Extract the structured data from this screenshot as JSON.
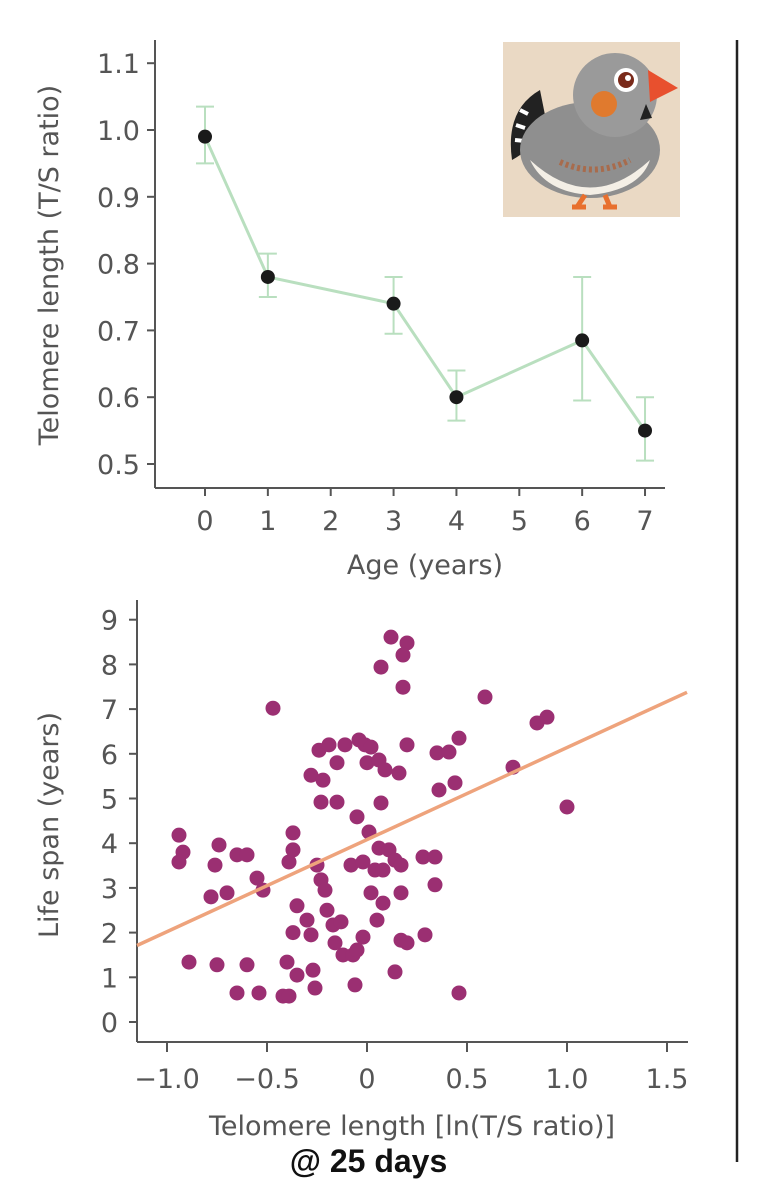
{
  "chart_data": [
    {
      "type": "line",
      "xlabel": "Age (years)",
      "ylabel": "Telomere length (T/S ratio)",
      "xticks": [
        0,
        1,
        2,
        3,
        4,
        5,
        6,
        7
      ],
      "yticks": [
        0.5,
        0.6,
        0.7,
        0.8,
        0.9,
        1.0,
        1.1
      ],
      "xlim": [
        -0.7,
        7.3
      ],
      "ylim": [
        0.47,
        1.15
      ],
      "x": [
        0,
        1,
        3,
        4,
        6,
        7
      ],
      "y": [
        0.99,
        0.78,
        0.74,
        0.6,
        0.685,
        0.55
      ],
      "err_low": [
        0.95,
        0.75,
        0.695,
        0.565,
        0.595,
        0.505
      ],
      "err_high": [
        1.035,
        0.815,
        0.78,
        0.64,
        0.78,
        0.6
      ],
      "line_color": "#b9dfbf",
      "marker_color": "#1a1a1a",
      "inset_image": "zebra-finch-bird"
    },
    {
      "type": "scatter",
      "xlabel": "Telomere length [ln(T/S ratio)]",
      "ylabel": "Life span (years)",
      "xticks": [
        -1.0,
        -0.5,
        0,
        0.5,
        1.0,
        1.5
      ],
      "xtick_labels": [
        "−1.0",
        "−0.5",
        "0",
        "0.5",
        "1.0",
        "1.5"
      ],
      "yticks": [
        0,
        1,
        2,
        3,
        4,
        5,
        6,
        7,
        8,
        9
      ],
      "xlim": [
        -1.15,
        1.6
      ],
      "ylim": [
        -0.45,
        9.4
      ],
      "marker_color": "#9b2f72",
      "fit_line": {
        "intercept": 4.08,
        "slope": 2.06,
        "color": "#eea37c"
      },
      "points": [
        [
          -0.94,
          4.18
        ],
        [
          -0.92,
          3.8
        ],
        [
          -0.94,
          3.58
        ],
        [
          -0.74,
          3.96
        ],
        [
          -0.76,
          3.51
        ],
        [
          -0.65,
          3.74
        ],
        [
          -0.6,
          3.74
        ],
        [
          -0.55,
          3.22
        ],
        [
          -0.52,
          2.95
        ],
        [
          -0.78,
          2.8
        ],
        [
          -0.7,
          2.89
        ],
        [
          -0.39,
          3.58
        ],
        [
          -0.37,
          4.23
        ],
        [
          -0.37,
          3.85
        ],
        [
          -0.89,
          1.34
        ],
        [
          -0.75,
          1.28
        ],
        [
          -0.6,
          1.28
        ],
        [
          -0.65,
          0.65
        ],
        [
          -0.54,
          0.65
        ],
        [
          -0.42,
          0.58
        ],
        [
          -0.39,
          0.58
        ],
        [
          -0.4,
          1.34
        ],
        [
          -0.35,
          1.05
        ],
        [
          -0.27,
          1.16
        ],
        [
          -0.26,
          0.76
        ],
        [
          -0.47,
          7.02
        ],
        [
          -0.35,
          2.6
        ],
        [
          -0.3,
          2.28
        ],
        [
          -0.28,
          1.95
        ],
        [
          -0.37,
          2.0
        ],
        [
          -0.28,
          5.52
        ],
        [
          -0.22,
          5.41
        ],
        [
          -0.24,
          6.08
        ],
        [
          -0.19,
          6.2
        ],
        [
          -0.15,
          5.8
        ],
        [
          -0.23,
          4.92
        ],
        [
          -0.15,
          4.92
        ],
        [
          -0.05,
          4.59
        ],
        [
          -0.11,
          6.2
        ],
        [
          -0.25,
          3.51
        ],
        [
          -0.23,
          3.18
        ],
        [
          -0.21,
          2.95
        ],
        [
          -0.2,
          2.5
        ],
        [
          -0.17,
          2.17
        ],
        [
          -0.13,
          2.24
        ],
        [
          -0.16,
          1.77
        ],
        [
          -0.12,
          1.5
        ],
        [
          -0.07,
          1.5
        ],
        [
          -0.05,
          1.61
        ],
        [
          -0.06,
          0.83
        ],
        [
          -0.02,
          1.9
        ],
        [
          -0.04,
          6.31
        ],
        [
          -0.01,
          6.2
        ],
        [
          0.02,
          6.15
        ],
        [
          0.0,
          5.8
        ],
        [
          0.06,
          5.86
        ],
        [
          0.09,
          5.64
        ],
        [
          0.16,
          5.57
        ],
        [
          0.2,
          6.2
        ],
        [
          0.01,
          4.25
        ],
        [
          0.07,
          4.9
        ],
        [
          -0.08,
          3.51
        ],
        [
          -0.02,
          3.58
        ],
        [
          0.06,
          3.89
        ],
        [
          0.11,
          3.85
        ],
        [
          0.14,
          3.62
        ],
        [
          0.17,
          3.51
        ],
        [
          0.04,
          3.4
        ],
        [
          0.08,
          3.4
        ],
        [
          0.02,
          2.89
        ],
        [
          0.08,
          2.66
        ],
        [
          0.17,
          2.89
        ],
        [
          0.05,
          2.28
        ],
        [
          0.17,
          1.83
        ],
        [
          0.2,
          1.77
        ],
        [
          0.14,
          1.12
        ],
        [
          0.29,
          1.95
        ],
        [
          0.28,
          3.69
        ],
        [
          0.34,
          3.69
        ],
        [
          0.34,
          3.07
        ],
        [
          0.12,
          8.61
        ],
        [
          0.2,
          8.48
        ],
        [
          0.18,
          8.21
        ],
        [
          0.07,
          7.94
        ],
        [
          0.18,
          7.49
        ],
        [
          0.35,
          6.02
        ],
        [
          0.41,
          6.04
        ],
        [
          0.46,
          6.35
        ],
        [
          0.36,
          5.19
        ],
        [
          0.44,
          5.35
        ],
        [
          0.59,
          7.27
        ],
        [
          0.73,
          5.7
        ],
        [
          0.85,
          6.69
        ],
        [
          0.9,
          6.82
        ],
        [
          1.0,
          4.81
        ],
        [
          0.46,
          0.65
        ]
      ]
    }
  ],
  "footnote": "@ 25 days"
}
